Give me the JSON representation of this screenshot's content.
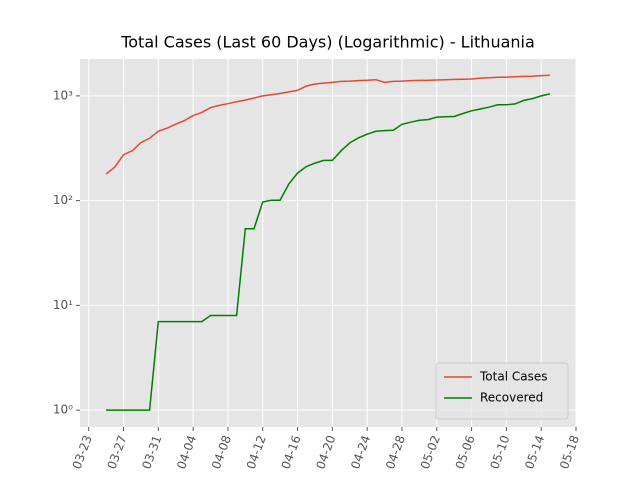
{
  "chart_data": {
    "type": "line",
    "title": "Total Cases (Last 60 Days) (Logarithmic) - Lithuania",
    "x": [
      "03-25",
      "03-26",
      "03-27",
      "03-28",
      "03-29",
      "03-30",
      "03-31",
      "04-01",
      "04-02",
      "04-03",
      "04-04",
      "04-05",
      "04-06",
      "04-07",
      "04-08",
      "04-09",
      "04-10",
      "04-11",
      "04-12",
      "04-13",
      "04-14",
      "04-15",
      "04-16",
      "04-17",
      "04-18",
      "04-19",
      "04-20",
      "04-21",
      "04-22",
      "04-23",
      "04-24",
      "04-25",
      "04-26",
      "04-27",
      "04-28",
      "04-29",
      "04-30",
      "05-01",
      "05-02",
      "05-03",
      "05-04",
      "05-05",
      "05-06",
      "05-07",
      "05-08",
      "05-09",
      "05-10",
      "05-11",
      "05-12",
      "05-13",
      "05-14",
      "05-15"
    ],
    "series": [
      {
        "name": "Total Cases",
        "color": "#e24a33",
        "values": [
          179,
          209,
          274,
          299,
          358,
          394,
          460,
          491,
          537,
          581,
          649,
          696,
          771,
          811,
          843,
          880,
          912,
          955,
          999,
          1026,
          1053,
          1091,
          1128,
          1239,
          1298,
          1326,
          1344,
          1375,
          1385,
          1398,
          1410,
          1426,
          1344,
          1375,
          1385,
          1399,
          1405,
          1410,
          1419,
          1428,
          1436,
          1444,
          1449,
          1479,
          1491,
          1505,
          1511,
          1523,
          1534,
          1541,
          1562,
          1577
        ]
      },
      {
        "name": "Recovered",
        "color": "#008000",
        "values": [
          1,
          1,
          1,
          1,
          1,
          1,
          7,
          7,
          7,
          7,
          7,
          7,
          8,
          8,
          8,
          8,
          54,
          54,
          97,
          101,
          101,
          144,
          183,
          211,
          228,
          242,
          242,
          300,
          356,
          398,
          431,
          459,
          466,
          469,
          536,
          561,
          585,
          594,
          627,
          632,
          635,
          679,
          720,
          750,
          780,
          822,
          822,
          839,
          905,
          943,
          1000,
          1045
        ]
      }
    ],
    "xlim": [
      "03-22",
      "05-18"
    ],
    "xticks": [
      "03-23",
      "03-27",
      "03-31",
      "04-04",
      "04-08",
      "04-12",
      "04-16",
      "04-20",
      "04-24",
      "04-28",
      "05-02",
      "05-06",
      "05-10",
      "05-14",
      "05-18"
    ],
    "ylim": [
      0.69,
      2250
    ],
    "yticks": [
      {
        "value": 1,
        "label": "10⁰"
      },
      {
        "value": 10,
        "label": "10¹"
      },
      {
        "value": 100,
        "label": "10²"
      },
      {
        "value": 1000,
        "label": "10³"
      }
    ],
    "log_y": true,
    "grid": true,
    "legend": "lower right"
  }
}
